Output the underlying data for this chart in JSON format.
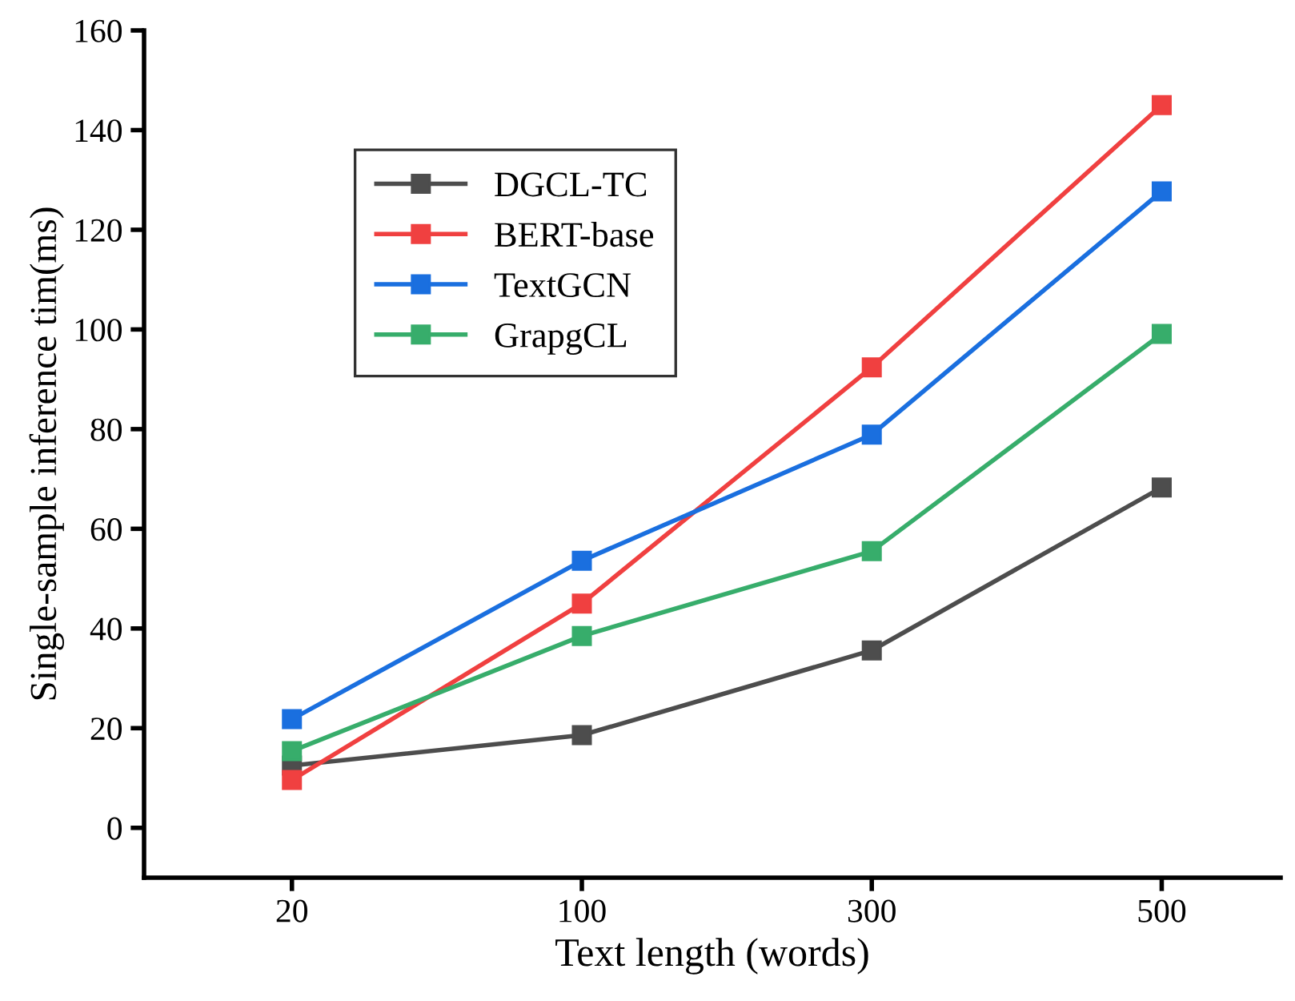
{
  "chart_data": {
    "type": "line",
    "xlabel": "Text length (words)",
    "ylabel": "Single-sample inference tim(ms)",
    "categories": [
      "20",
      "100",
      "300",
      "500"
    ],
    "series": [
      {
        "name": "DGCL-TC",
        "color": "#4d4d4d",
        "values": [
          12.5,
          18.6,
          35.6,
          68.3
        ]
      },
      {
        "name": "BERT-base",
        "color": "#f04040",
        "values": [
          9.6,
          45,
          92.4,
          145
        ]
      },
      {
        "name": "TextGCN",
        "color": "#1a6fdf",
        "values": [
          21.8,
          53.6,
          78.9,
          127.7
        ]
      },
      {
        "name": "GrapgCL",
        "color": "#37ad6b",
        "values": [
          15.4,
          38.5,
          55.5,
          99.1
        ]
      }
    ],
    "ylim": [
      -10,
      160
    ],
    "yticks": [
      0,
      20,
      40,
      60,
      80,
      100,
      120,
      140,
      160
    ],
    "grid": false,
    "legend": "top left",
    "marker": "square",
    "line_style": "solid"
  }
}
